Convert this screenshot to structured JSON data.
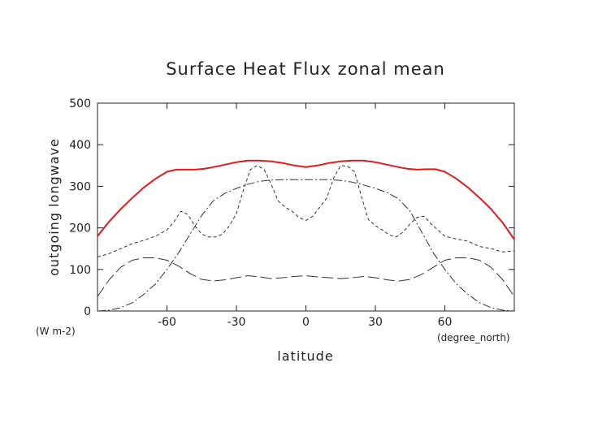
{
  "chart_data": {
    "type": "line",
    "title": "Surface Heat Flux zonal mean",
    "xlabel": "latitude",
    "ylabel": "outgoing longwave",
    "x_unit_label": "(degree_north)",
    "y_unit_label": "(W m-2)",
    "xlim": [
      -90,
      90
    ],
    "ylim": [
      0,
      500
    ],
    "x_ticks": [
      -60,
      -30,
      0,
      30,
      60
    ],
    "x_tick_labels": [
      "-60",
      "-30",
      "0",
      "30",
      "60"
    ],
    "y_ticks": [
      0,
      100,
      200,
      300,
      400,
      500
    ],
    "y_tick_labels": [
      "0",
      "100",
      "200",
      "300",
      "400",
      "500"
    ],
    "grid": false,
    "series": [
      {
        "style": "solid",
        "color": "#e31a1c",
        "width": 2,
        "x": [
          -90,
          -85,
          -80,
          -75,
          -70,
          -65,
          -60,
          -56,
          -52,
          -48,
          -44,
          -40,
          -35,
          -30,
          -25,
          -20,
          -15,
          -10,
          -5,
          0,
          5,
          10,
          15,
          20,
          25,
          30,
          35,
          40,
          44,
          48,
          52,
          56,
          60,
          65,
          70,
          75,
          80,
          85,
          90
        ],
        "y": [
          180,
          215,
          245,
          272,
          297,
          318,
          335,
          340,
          340,
          340,
          342,
          346,
          352,
          358,
          362,
          362,
          360,
          356,
          350,
          346,
          350,
          356,
          360,
          362,
          362,
          358,
          352,
          346,
          342,
          340,
          341,
          341,
          335,
          318,
          297,
          272,
          245,
          212,
          172
        ]
      },
      {
        "style": "dashed",
        "color": "#333333",
        "width": 1,
        "x": [
          -90,
          -85,
          -80,
          -75,
          -70,
          -65,
          -60,
          -57,
          -54,
          -51,
          -48,
          -45,
          -42,
          -39,
          -36,
          -33,
          -30,
          -27,
          -24,
          -21,
          -18,
          -15,
          -12,
          -9,
          -6,
          -3,
          0,
          3,
          6,
          9,
          12,
          15,
          18,
          21,
          24,
          27,
          30,
          33,
          36,
          39,
          42,
          45,
          48,
          51,
          54,
          57,
          60,
          65,
          70,
          75,
          80,
          85,
          90
        ],
        "y": [
          130,
          138,
          150,
          162,
          170,
          180,
          195,
          215,
          240,
          232,
          205,
          185,
          178,
          178,
          185,
          205,
          235,
          290,
          340,
          350,
          340,
          305,
          265,
          250,
          240,
          225,
          218,
          228,
          250,
          272,
          320,
          350,
          348,
          335,
          275,
          220,
          205,
          195,
          183,
          178,
          190,
          210,
          225,
          228,
          210,
          195,
          180,
          173,
          168,
          155,
          150,
          142,
          145
        ]
      },
      {
        "style": "dashdot",
        "color": "#333333",
        "width": 1,
        "x": [
          -90,
          -85,
          -80,
          -75,
          -70,
          -65,
          -60,
          -55,
          -50,
          -45,
          -40,
          -35,
          -30,
          -25,
          -20,
          -15,
          -10,
          -5,
          0,
          5,
          10,
          15,
          20,
          25,
          30,
          35,
          40,
          45,
          50,
          55,
          60,
          65,
          70,
          75,
          80,
          85,
          90
        ],
        "y": [
          0,
          2,
          8,
          20,
          40,
          65,
          100,
          140,
          185,
          230,
          265,
          283,
          295,
          305,
          312,
          315,
          316,
          316,
          316,
          316,
          316,
          314,
          310,
          303,
          295,
          285,
          270,
          240,
          190,
          140,
          100,
          65,
          40,
          20,
          8,
          2,
          0
        ]
      },
      {
        "style": "longdash",
        "color": "#333333",
        "width": 1,
        "x": [
          -90,
          -85,
          -80,
          -75,
          -70,
          -65,
          -60,
          -55,
          -50,
          -45,
          -40,
          -35,
          -30,
          -25,
          -20,
          -15,
          -10,
          -5,
          0,
          5,
          10,
          15,
          20,
          25,
          30,
          35,
          40,
          45,
          50,
          55,
          60,
          65,
          70,
          75,
          80,
          85,
          90
        ],
        "y": [
          35,
          75,
          105,
          122,
          128,
          128,
          122,
          108,
          90,
          76,
          72,
          75,
          80,
          85,
          82,
          78,
          80,
          83,
          85,
          82,
          80,
          78,
          80,
          83,
          80,
          75,
          72,
          76,
          88,
          105,
          122,
          128,
          128,
          122,
          105,
          75,
          35
        ]
      }
    ]
  }
}
